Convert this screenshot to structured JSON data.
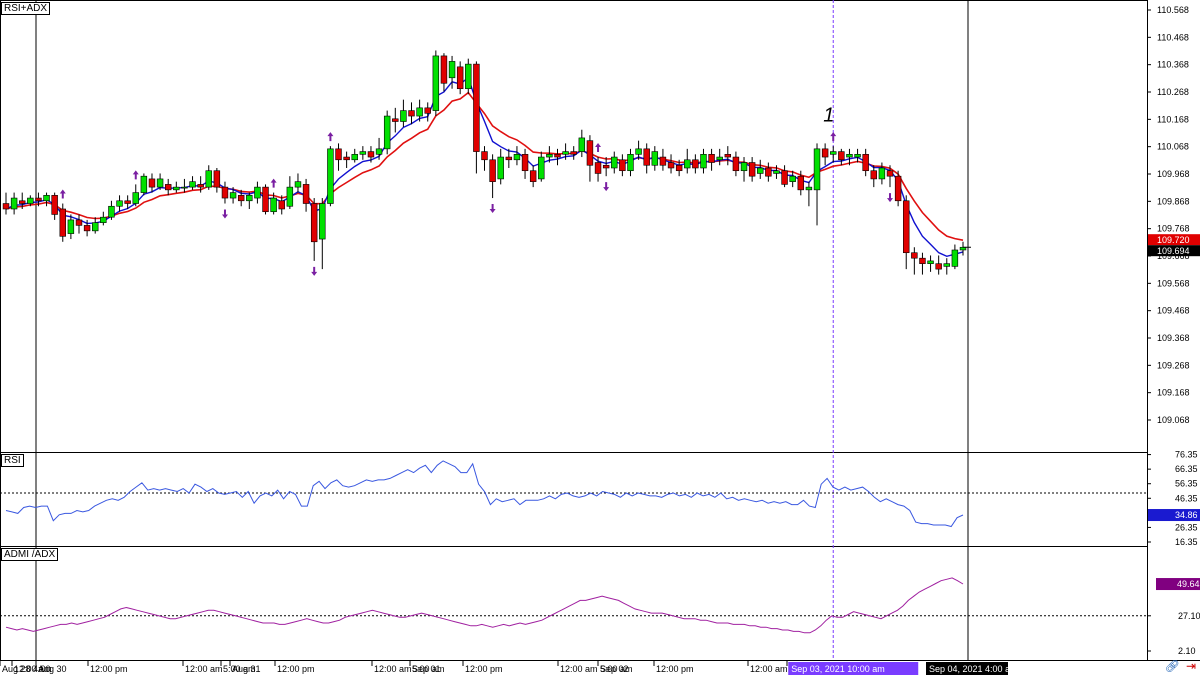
{
  "window": {
    "title": "RSI+ADX"
  },
  "panes": {
    "main": {
      "label": "RSI+ADX"
    },
    "rsi": {
      "label": "RSI"
    },
    "adx": {
      "label": "ADMI /ADX"
    }
  },
  "colors": {
    "bull": "#00e000",
    "bear": "#e00000",
    "ema_fast": "#1010d0",
    "ema_slow": "#e01010",
    "rsi_line": "#3a58e0",
    "adx_line": "#a020a0",
    "arrow": "#7a1fa2",
    "cursor_line": "#7a3cff",
    "price_badge_red": "#e00000",
    "price_badge_black": "#000000",
    "rsi_badge": "#1a1ad0",
    "adx_badge": "#800080"
  },
  "annotations": {
    "marker_label": "1"
  },
  "chart_data": [
    {
      "type": "candlestick",
      "title": "RSI+ADX",
      "ylim": [
        109.068,
        110.568
      ],
      "y_ticks": [
        "110.568",
        "110.468",
        "110.368",
        "110.268",
        "110.168",
        "110.068",
        "109.968",
        "109.868",
        "109.768",
        "109.668",
        "109.568",
        "109.468",
        "109.368",
        "109.268",
        "109.168",
        "109.068"
      ],
      "x_ticks": [
        "Aug 28 4:00",
        "Aug 30",
        "12:00 am",
        "12:00 pm",
        "12:00 am",
        "5:00 am",
        "Aug 31",
        "12:00 pm",
        "12:00 am",
        "5:00 am",
        "Sep 01",
        "12:00 pm",
        "12:00 am",
        "Sep 02",
        "5:00 am",
        "12:00 pm",
        "12:00 am",
        "Sep 03"
      ],
      "cursor_labels": [
        "Sep 03, 2021 10:00 am",
        "Sep 04, 2021 4:00 am"
      ],
      "price_badges": [
        "109.720",
        "109.694"
      ],
      "candles": [
        [
          109.86,
          109.84,
          109.9,
          109.82
        ],
        [
          109.84,
          109.88,
          109.9,
          109.82
        ],
        [
          109.87,
          109.86,
          109.9,
          109.84
        ],
        [
          109.86,
          109.88,
          109.89,
          109.85
        ],
        [
          109.88,
          109.87,
          109.9,
          109.85
        ],
        [
          109.87,
          109.89,
          109.9,
          109.85
        ],
        [
          109.89,
          109.82,
          109.9,
          109.8
        ],
        [
          109.84,
          109.74,
          109.86,
          109.72
        ],
        [
          109.75,
          109.8,
          109.82,
          109.73
        ],
        [
          109.8,
          109.78,
          109.82,
          109.75
        ],
        [
          109.78,
          109.76,
          109.8,
          109.74
        ],
        [
          109.76,
          109.79,
          109.81,
          109.75
        ],
        [
          109.79,
          109.81,
          109.83,
          109.78
        ],
        [
          109.81,
          109.85,
          109.87,
          109.8
        ],
        [
          109.85,
          109.87,
          109.89,
          109.83
        ],
        [
          109.87,
          109.86,
          109.89,
          109.84
        ],
        [
          109.86,
          109.9,
          109.93,
          109.85
        ],
        [
          109.9,
          109.96,
          109.97,
          109.89
        ],
        [
          109.95,
          109.92,
          109.97,
          109.9
        ],
        [
          109.92,
          109.95,
          109.97,
          109.91
        ],
        [
          109.93,
          109.91,
          109.95,
          109.89
        ],
        [
          109.91,
          109.92,
          109.94,
          109.9
        ],
        [
          109.92,
          109.92,
          109.95,
          109.9
        ],
        [
          109.92,
          109.94,
          109.96,
          109.91
        ],
        [
          109.93,
          109.92,
          109.96,
          109.9
        ],
        [
          109.92,
          109.98,
          110.0,
          109.91
        ],
        [
          109.98,
          109.92,
          109.99,
          109.9
        ],
        [
          109.92,
          109.88,
          109.94,
          109.86
        ],
        [
          109.88,
          109.9,
          109.92,
          109.86
        ],
        [
          109.89,
          109.87,
          109.91,
          109.85
        ],
        [
          109.87,
          109.89,
          109.9,
          109.84
        ],
        [
          109.88,
          109.92,
          109.94,
          109.86
        ],
        [
          109.92,
          109.83,
          109.93,
          109.82
        ],
        [
          109.83,
          109.88,
          109.9,
          109.82
        ],
        [
          109.87,
          109.84,
          109.89,
          109.82
        ],
        [
          109.85,
          109.92,
          109.96,
          109.84
        ],
        [
          109.92,
          109.94,
          109.97,
          109.9
        ],
        [
          109.93,
          109.86,
          109.95,
          109.83
        ],
        [
          109.86,
          109.72,
          109.88,
          109.65
        ],
        [
          109.73,
          109.86,
          109.88,
          109.62
        ],
        [
          109.86,
          110.06,
          110.07,
          109.85
        ],
        [
          110.06,
          110.02,
          110.08,
          109.98
        ],
        [
          110.03,
          110.02,
          110.05,
          109.99
        ],
        [
          110.02,
          110.04,
          110.06,
          110.01
        ],
        [
          110.04,
          110.05,
          110.07,
          110.02
        ],
        [
          110.05,
          110.03,
          110.07,
          110.01
        ],
        [
          110.04,
          110.06,
          110.1,
          110.02
        ],
        [
          110.06,
          110.18,
          110.2,
          110.04
        ],
        [
          110.17,
          110.16,
          110.21,
          110.12
        ],
        [
          110.16,
          110.2,
          110.24,
          110.14
        ],
        [
          110.2,
          110.18,
          110.23,
          110.15
        ],
        [
          110.18,
          110.21,
          110.24,
          110.16
        ],
        [
          110.21,
          110.19,
          110.23,
          110.16
        ],
        [
          110.2,
          110.4,
          110.42,
          110.18
        ],
        [
          110.4,
          110.3,
          110.41,
          110.27
        ],
        [
          110.32,
          110.38,
          110.4,
          110.28
        ],
        [
          110.36,
          110.28,
          110.38,
          110.26
        ],
        [
          110.28,
          110.37,
          110.39,
          110.26
        ],
        [
          110.37,
          110.05,
          110.38,
          109.97
        ],
        [
          110.05,
          110.02,
          110.07,
          109.98
        ],
        [
          110.02,
          109.94,
          110.04,
          109.88
        ],
        [
          109.95,
          110.03,
          110.06,
          109.93
        ],
        [
          110.03,
          110.02,
          110.06,
          109.99
        ],
        [
          110.02,
          110.04,
          110.07,
          110.0
        ],
        [
          110.04,
          109.98,
          110.06,
          109.95
        ],
        [
          109.98,
          109.94,
          110.0,
          109.92
        ],
        [
          109.95,
          110.03,
          110.05,
          109.94
        ],
        [
          110.03,
          110.04,
          110.07,
          110.01
        ],
        [
          110.04,
          110.03,
          110.06,
          110.0
        ],
        [
          110.04,
          110.05,
          110.08,
          110.02
        ],
        [
          110.05,
          110.04,
          110.07,
          110.02
        ],
        [
          110.05,
          110.1,
          110.13,
          110.03
        ],
        [
          110.09,
          110.0,
          110.11,
          109.94
        ],
        [
          110.01,
          109.97,
          110.03,
          109.94
        ],
        [
          110.0,
          109.99,
          110.03,
          109.96
        ],
        [
          109.99,
          110.03,
          110.05,
          109.97
        ],
        [
          110.02,
          109.98,
          110.04,
          109.96
        ],
        [
          109.98,
          110.04,
          110.06,
          109.96
        ],
        [
          110.04,
          110.06,
          110.09,
          110.02
        ],
        [
          110.06,
          110.0,
          110.08,
          109.97
        ],
        [
          110.0,
          110.05,
          110.07,
          109.98
        ],
        [
          110.03,
          110.0,
          110.06,
          109.98
        ],
        [
          110.01,
          109.99,
          110.04,
          109.97
        ],
        [
          110.0,
          109.98,
          110.02,
          109.96
        ],
        [
          109.99,
          110.02,
          110.06,
          109.97
        ],
        [
          110.02,
          109.99,
          110.04,
          109.97
        ],
        [
          109.99,
          110.04,
          110.06,
          109.97
        ],
        [
          110.04,
          110.01,
          110.06,
          109.98
        ],
        [
          110.02,
          110.03,
          110.06,
          110.0
        ],
        [
          110.04,
          110.03,
          110.07,
          110.0
        ],
        [
          110.03,
          109.98,
          110.05,
          109.96
        ],
        [
          109.98,
          110.01,
          110.03,
          109.94
        ],
        [
          110.01,
          109.96,
          110.03,
          109.94
        ],
        [
          109.97,
          109.99,
          110.02,
          109.95
        ],
        [
          109.99,
          109.96,
          110.01,
          109.94
        ],
        [
          109.97,
          109.98,
          110.0,
          109.95
        ],
        [
          109.98,
          109.93,
          110.0,
          109.92
        ],
        [
          109.94,
          109.96,
          109.98,
          109.92
        ],
        [
          109.96,
          109.91,
          109.98,
          109.89
        ],
        [
          109.91,
          109.92,
          109.94,
          109.85
        ],
        [
          109.91,
          110.06,
          110.08,
          109.78
        ],
        [
          110.06,
          110.03,
          110.08,
          110.0
        ],
        [
          110.04,
          110.05,
          110.07,
          110.01
        ],
        [
          110.05,
          110.02,
          110.06,
          110.0
        ],
        [
          110.03,
          110.04,
          110.06,
          110.0
        ],
        [
          110.03,
          110.04,
          110.06,
          110.01
        ],
        [
          110.04,
          109.98,
          110.06,
          109.96
        ],
        [
          109.98,
          109.95,
          110.0,
          109.92
        ],
        [
          109.95,
          109.99,
          110.01,
          109.93
        ],
        [
          109.98,
          109.96,
          110.0,
          109.92
        ],
        [
          109.96,
          109.87,
          109.98,
          109.85
        ],
        [
          109.87,
          109.68,
          109.89,
          109.62
        ],
        [
          109.68,
          109.66,
          109.7,
          109.6
        ],
        [
          109.66,
          109.64,
          109.68,
          109.6
        ],
        [
          109.64,
          109.65,
          109.67,
          109.61
        ],
        [
          109.64,
          109.62,
          109.67,
          109.6
        ],
        [
          109.63,
          109.64,
          109.66,
          109.6
        ],
        [
          109.63,
          109.69,
          109.71,
          109.62
        ],
        [
          109.69,
          109.7,
          109.72,
          109.67
        ]
      ],
      "arrows": [
        {
          "i": 7,
          "dir": "up"
        },
        {
          "i": 16,
          "dir": "up"
        },
        {
          "i": 27,
          "dir": "down"
        },
        {
          "i": 33,
          "dir": "up"
        },
        {
          "i": 38,
          "dir": "down"
        },
        {
          "i": 40,
          "dir": "up"
        },
        {
          "i": 60,
          "dir": "down"
        },
        {
          "i": 73,
          "dir": "up"
        },
        {
          "i": 74,
          "dir": "down"
        },
        {
          "i": 102,
          "dir": "up"
        },
        {
          "i": 109,
          "dir": "down"
        }
      ]
    },
    {
      "type": "line",
      "title": "RSI",
      "ylim": [
        16.35,
        86.35
      ],
      "y_ticks": [
        "76.35",
        "66.35",
        "56.35",
        "46.35",
        "36.35",
        "26.35",
        "16.35"
      ],
      "reference_level": 50,
      "last_value_badge": "34.86",
      "values": [
        38,
        37,
        36,
        40,
        41,
        40,
        41,
        41,
        31,
        35,
        36,
        36,
        38,
        37,
        38,
        41,
        43,
        45,
        46,
        45,
        47,
        51,
        54,
        57,
        52,
        53,
        52,
        53,
        52,
        51,
        53,
        50,
        56,
        54,
        51,
        53,
        50,
        49,
        50,
        51,
        47,
        51,
        43,
        48,
        50,
        48,
        52,
        46,
        51,
        49,
        41,
        41,
        55,
        58,
        53,
        57,
        59,
        55,
        54,
        55,
        57,
        59,
        58,
        59,
        59,
        60,
        62,
        64,
        66,
        64,
        67,
        69,
        64,
        69,
        72,
        70,
        68,
        64,
        64,
        70,
        56,
        51,
        42,
        46,
        44,
        45,
        46,
        42,
        45,
        45,
        45,
        46,
        48,
        46,
        49,
        50,
        48,
        47,
        48,
        50,
        48,
        51,
        50,
        49,
        47,
        50,
        48,
        50,
        49,
        48,
        48,
        47,
        49,
        50,
        48,
        49,
        47,
        50,
        48,
        49,
        47,
        50,
        46,
        47,
        45,
        46,
        45,
        44,
        45,
        43,
        44,
        43,
        44,
        42,
        42,
        45,
        41,
        40,
        56,
        60,
        54,
        52,
        54,
        52,
        53,
        54,
        51,
        47,
        44,
        46,
        44,
        42,
        41,
        38,
        30,
        29,
        29,
        28,
        28,
        28,
        27,
        33,
        34.86
      ]
    },
    {
      "type": "line",
      "title": "ADMI /ADX",
      "ylim": [
        2.1,
        66.0
      ],
      "y_ticks": [
        "27.10",
        "2.10"
      ],
      "reference_level": 27.1,
      "last_value_badge": "49.64",
      "values": [
        19,
        18,
        17,
        18,
        17,
        16,
        17,
        18,
        19,
        20,
        21,
        21,
        22,
        21,
        22,
        23,
        24,
        25,
        26,
        28,
        30,
        32,
        33,
        32,
        31,
        30,
        29,
        28,
        27,
        26,
        25,
        25,
        26,
        27,
        28,
        29,
        30,
        31,
        31,
        30,
        29,
        28,
        27,
        26,
        25,
        24,
        23,
        22,
        22,
        22,
        21,
        21,
        22,
        23,
        24,
        25,
        24,
        23,
        22,
        22,
        23,
        24,
        26,
        27,
        28,
        29,
        30,
        31,
        30,
        29,
        28,
        27,
        26,
        26,
        27,
        28,
        29,
        28,
        27,
        26,
        25,
        24,
        23,
        22,
        21,
        20,
        20,
        21,
        20,
        19,
        20,
        21,
        20,
        21,
        22,
        21,
        22,
        23,
        24,
        26,
        28,
        30,
        32,
        34,
        36,
        38,
        38,
        39,
        40,
        41,
        40,
        39,
        38,
        36,
        34,
        32,
        31,
        30,
        29,
        29,
        29,
        28,
        27,
        26,
        25,
        25,
        25,
        24,
        24,
        23,
        22,
        22,
        22,
        21,
        21,
        21,
        20,
        20,
        19,
        19,
        18,
        18,
        17,
        17,
        16,
        16,
        15,
        15,
        17,
        20,
        24,
        27,
        26,
        26,
        28,
        30,
        29,
        28,
        27,
        26,
        25,
        27,
        29,
        31,
        34,
        38,
        41,
        44,
        46,
        48,
        50,
        52,
        53,
        54,
        52,
        49.64
      ]
    }
  ]
}
